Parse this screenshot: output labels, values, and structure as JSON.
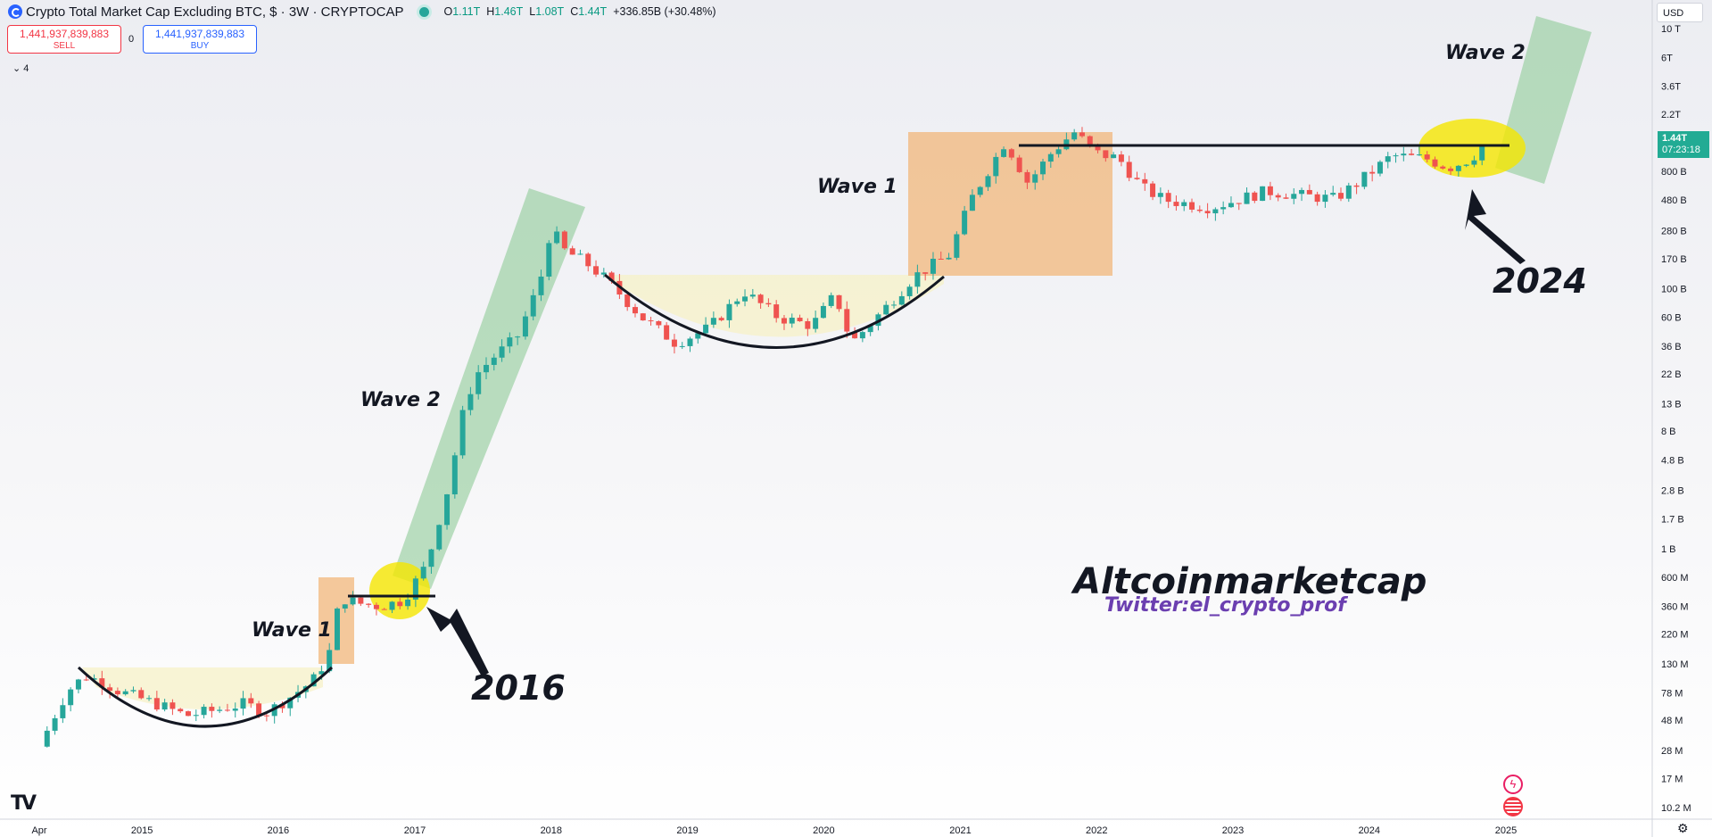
{
  "header": {
    "title": "Crypto Total Market Cap Excluding BTC, $ · 3W · CRYPTOCAP",
    "open_label": "O",
    "open": "1.11T",
    "high_label": "H",
    "high": "1.46T",
    "low_label": "L",
    "low": "1.08T",
    "close_label": "C",
    "close": "1.44T",
    "change": "+336.85B (+30.48%)"
  },
  "trade": {
    "sell_price": "1,441,937,839,883",
    "sell_label": "SELL",
    "spread": "0",
    "buy_price": "1,441,937,839,883",
    "buy_label": "BUY"
  },
  "indicators_toggle": "4",
  "currency": "USD",
  "price_tag": {
    "price": "1.44T",
    "countdown": "07:23:18"
  },
  "colors": {
    "up": "#26a69a",
    "down": "#ef5350",
    "accent": "#2962ff",
    "price_tag": "#22ab94"
  },
  "icons": [
    "symbol-logo-icon",
    "chevron-down-icon",
    "tradingview-logo-icon",
    "flash-icon",
    "us-flag-icon",
    "settings-icon"
  ],
  "chart_data": {
    "type": "candlestick",
    "symbol": "CRYPTOCAP:TOTAL2",
    "timeframe": "3W",
    "y_scale": "log",
    "y_ticks": [
      "10 T",
      "6T",
      "3.6T",
      "2.2T",
      "800 B",
      "480 B",
      "280 B",
      "170 B",
      "100 B",
      "60 B",
      "36 B",
      "22 B",
      "13 B",
      "8 B",
      "4.8 B",
      "2.8 B",
      "1.7 B",
      "1 B",
      "600 M",
      "360 M",
      "220 M",
      "130 M",
      "78 M",
      "48 M",
      "28 M",
      "17 M",
      "10.2 M"
    ],
    "y_tick_values": [
      10000000000000.0,
      6000000000000.0,
      3600000000000.0,
      2200000000000.0,
      800000000000.0,
      480000000000.0,
      280000000000.0,
      170000000000.0,
      100000000000.0,
      60000000000.0,
      36000000000.0,
      22000000000.0,
      13000000000.0,
      8000000000.0,
      4800000000.0,
      2800000000.0,
      1700000000.0,
      1000000000.0,
      600000000.0,
      360000000.0,
      220000000.0,
      130000000.0,
      78000000.0,
      48000000.0,
      28000000.0,
      17000000.0,
      10200000.0
    ],
    "x_ticks": [
      "Apr",
      "2015",
      "2016",
      "2017",
      "2018",
      "2019",
      "2020",
      "2021",
      "2022",
      "2023",
      "2024",
      "2025"
    ],
    "x_tick_dates": [
      "2014-04-01",
      "2015-01-01",
      "2016-01-01",
      "2017-01-01",
      "2018-01-01",
      "2019-01-01",
      "2020-01-01",
      "2021-01-01",
      "2022-01-01",
      "2023-01-01",
      "2024-01-01",
      "2025-01-01"
    ],
    "last_price": "1.44T",
    "path": [
      [
        "2014-04-01",
        30000000.0
      ],
      [
        "2014-05-01",
        45000000.0
      ],
      [
        "2014-06-15",
        80000000.0
      ],
      [
        "2014-08-01",
        105000000.0
      ],
      [
        "2014-09-15",
        95000000.0
      ],
      [
        "2014-11-01",
        80000000.0
      ],
      [
        "2015-02-01",
        65000000.0
      ],
      [
        "2015-05-01",
        52000000.0
      ],
      [
        "2015-07-01",
        56000000.0
      ],
      [
        "2015-10-01",
        64000000.0
      ],
      [
        "2015-12-01",
        55000000.0
      ],
      [
        "2016-02-01",
        72000000.0
      ],
      [
        "2016-04-01",
        95000000.0
      ],
      [
        "2016-05-15",
        150000000.0
      ],
      [
        "2016-06-15",
        420000000.0
      ],
      [
        "2016-08-01",
        380000000.0
      ],
      [
        "2016-10-01",
        360000000.0
      ],
      [
        "2016-12-01",
        400000000.0
      ],
      [
        "2017-02-01",
        750000000.0
      ],
      [
        "2017-04-01",
        3000000000.0
      ],
      [
        "2017-05-15",
        13000000000.0
      ],
      [
        "2017-06-15",
        22000000000.0
      ],
      [
        "2017-08-01",
        30000000000.0
      ],
      [
        "2017-10-01",
        42000000000.0
      ],
      [
        "2017-12-01",
        110000000000.0
      ],
      [
        "2018-01-01",
        300000000000.0
      ],
      [
        "2018-02-01",
        200000000000.0
      ],
      [
        "2018-04-01",
        160000000000.0
      ],
      [
        "2018-06-01",
        115000000000.0
      ],
      [
        "2018-09-01",
        60000000000.0
      ],
      [
        "2018-12-01",
        38000000000.0
      ],
      [
        "2019-03-01",
        50000000000.0
      ],
      [
        "2019-06-01",
        95000000000.0
      ],
      [
        "2019-09-01",
        60000000000.0
      ],
      [
        "2019-12-01",
        52000000000.0
      ],
      [
        "2020-02-01",
        90000000000.0
      ],
      [
        "2020-03-15",
        38000000000.0
      ],
      [
        "2020-06-01",
        65000000000.0
      ],
      [
        "2020-09-01",
        125000000000.0
      ],
      [
        "2020-12-01",
        180000000000.0
      ],
      [
        "2021-02-01",
        500000000000.0
      ],
      [
        "2021-05-01",
        1350000000000.0
      ],
      [
        "2021-07-01",
        650000000000.0
      ],
      [
        "2021-09-01",
        1100000000000.0
      ],
      [
        "2021-11-01",
        1600000000000.0
      ],
      [
        "2022-01-01",
        1100000000000.0
      ],
      [
        "2022-03-01",
        1000000000000.0
      ],
      [
        "2022-05-01",
        600000000000.0
      ],
      [
        "2022-07-01",
        480000000000.0
      ],
      [
        "2022-11-01",
        420000000000.0
      ],
      [
        "2023-01-01",
        470000000000.0
      ],
      [
        "2023-04-01",
        560000000000.0
      ],
      [
        "2023-07-01",
        520000000000.0
      ],
      [
        "2023-10-01",
        490000000000.0
      ],
      [
        "2023-12-01",
        650000000000.0
      ],
      [
        "2024-03-01",
        1050000000000.0
      ],
      [
        "2024-06-01",
        1000000000000.0
      ],
      [
        "2024-08-01",
        850000000000.0
      ],
      [
        "2024-10-01",
        1000000000000.0
      ],
      [
        "2024-11-15",
        1440000000000.0
      ]
    ]
  },
  "annotations": {
    "wave1_2016": "Wave 1",
    "wave2_2017": "Wave 2",
    "wave1_2021": "Wave 1",
    "wave2_2024": "Wave 2",
    "year_2016": "2016",
    "year_2024": "2024",
    "watermark_title": "Altcoinmarketcap",
    "watermark_sub": "Twitter:el_crypto_prof"
  }
}
